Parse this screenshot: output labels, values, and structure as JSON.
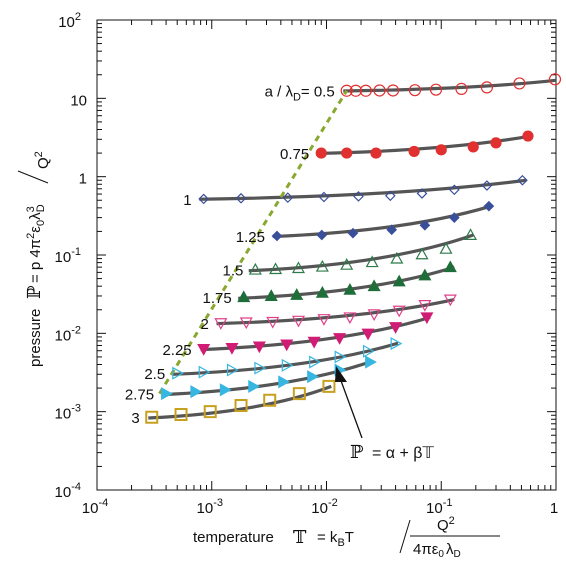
{
  "chart_data": {
    "type": "scatter",
    "xscale": "log",
    "yscale": "log",
    "xlim": [
      0.0001,
      1
    ],
    "ylim": [
      0.0001,
      100
    ],
    "x_ticks": [
      {
        "base": "10",
        "exp": "-4"
      },
      {
        "base": "10",
        "exp": "-3"
      },
      {
        "base": "10",
        "exp": "-2"
      },
      {
        "base": "10",
        "exp": "-1"
      },
      {
        "base": "1",
        "exp": ""
      }
    ],
    "y_ticks": [
      {
        "base": "10",
        "exp": "-4"
      },
      {
        "base": "10",
        "exp": "-3"
      },
      {
        "base": "10",
        "exp": "-2"
      },
      {
        "base": "10",
        "exp": "-1"
      },
      {
        "base": "1",
        "exp": ""
      },
      {
        "base": "10",
        "exp": ""
      },
      {
        "base": "10",
        "exp": "2"
      }
    ],
    "xlabel": {
      "word": "temperature",
      "symbol": "𝕋",
      "eq": "= k",
      "sub_b": "B",
      "t": "T",
      "num": "Q",
      "num_sup": "2",
      "den": "4πε",
      "den_sub0": "0",
      "den_lambda": "λ",
      "den_subD": "D"
    },
    "ylabel": {
      "word": "pressure",
      "symbol": "ℙ",
      "eq": "= p 4π",
      "sup2": "2",
      "eps": "ε",
      "sub0": "0",
      "lam": "λ",
      "sup3": "3",
      "subD": "D",
      "den": "Q",
      "den_sup": "2"
    },
    "series_prefix": {
      "a": "a / λ",
      "sub": "D",
      "eq": "= "
    },
    "fit_annotation": {
      "lhs": "ℙ",
      "rhs": "= α + β𝕋"
    },
    "series": [
      {
        "label": "0.5",
        "marker": "circle",
        "filled": false,
        "color": "#e03030",
        "x": [
          0.015,
          0.018,
          0.022,
          0.029,
          0.038,
          0.059,
          0.09,
          0.15,
          0.25,
          0.48,
          0.98
        ],
        "y": [
          12.5,
          12.5,
          12.5,
          12.6,
          12.6,
          12.7,
          12.9,
          13.2,
          13.8,
          15.5,
          17.5
        ]
      },
      {
        "label": "0.75",
        "marker": "circle",
        "filled": true,
        "color": "#e03030",
        "x": [
          0.009,
          0.015,
          0.027,
          0.058,
          0.1,
          0.19,
          0.3,
          0.57
        ],
        "y": [
          2.0,
          2.0,
          2.0,
          2.1,
          2.2,
          2.4,
          2.7,
          3.3
        ]
      },
      {
        "label": "1",
        "marker": "diamond",
        "filled": false,
        "color": "#3a4f9a",
        "x": [
          0.00085,
          0.0018,
          0.0046,
          0.0095,
          0.019,
          0.036,
          0.068,
          0.13,
          0.25,
          0.51
        ],
        "y": [
          0.52,
          0.53,
          0.54,
          0.55,
          0.56,
          0.57,
          0.61,
          0.68,
          0.77,
          0.9
        ]
      },
      {
        "label": "1.25",
        "marker": "diamond",
        "filled": true,
        "color": "#3a4f9a",
        "x": [
          0.0037,
          0.0091,
          0.017,
          0.037,
          0.072,
          0.13,
          0.26
        ],
        "y": [
          0.175,
          0.18,
          0.19,
          0.21,
          0.24,
          0.3,
          0.42
        ]
      },
      {
        "label": "1.5",
        "marker": "triangle-up",
        "filled": false,
        "color": "#2e7a4a",
        "x": [
          0.0024,
          0.0036,
          0.0057,
          0.0092,
          0.015,
          0.025,
          0.041,
          0.068,
          0.11,
          0.18
        ],
        "y": [
          0.065,
          0.066,
          0.068,
          0.071,
          0.075,
          0.081,
          0.09,
          0.102,
          0.12,
          0.18
        ]
      },
      {
        "label": "1.75",
        "marker": "triangle-up",
        "filled": true,
        "color": "#1f6e3a",
        "x": [
          0.0019,
          0.0033,
          0.0055,
          0.0092,
          0.016,
          0.026,
          0.043,
          0.072,
          0.12
        ],
        "y": [
          0.029,
          0.03,
          0.031,
          0.033,
          0.036,
          0.04,
          0.046,
          0.055,
          0.07
        ]
      },
      {
        "label": "2",
        "marker": "triangle-down",
        "filled": false,
        "color": "#e0408a",
        "x": [
          0.0012,
          0.002,
          0.0034,
          0.0057,
          0.0095,
          0.016,
          0.026,
          0.043,
          0.072,
          0.12
        ],
        "y": [
          0.0135,
          0.0138,
          0.014,
          0.0145,
          0.0152,
          0.016,
          0.0175,
          0.0195,
          0.023,
          0.027
        ]
      },
      {
        "label": "2.25",
        "marker": "triangle-down",
        "filled": true,
        "color": "#d01c74",
        "x": [
          0.00085,
          0.0015,
          0.0026,
          0.0045,
          0.0078,
          0.013,
          0.023,
          0.04,
          0.075
        ],
        "y": [
          0.0063,
          0.0065,
          0.0068,
          0.0072,
          0.0078,
          0.0087,
          0.0099,
          0.012,
          0.016
        ]
      },
      {
        "label": "2.5",
        "marker": "triangle-right",
        "filled": false,
        "color": "#36b6e0",
        "x": [
          0.0005,
          0.00085,
          0.0015,
          0.0026,
          0.0045,
          0.0078,
          0.013,
          0.023,
          0.04
        ],
        "y": [
          0.0031,
          0.0032,
          0.0034,
          0.0036,
          0.0039,
          0.0043,
          0.005,
          0.0059,
          0.0074
        ]
      },
      {
        "label": "2.75",
        "marker": "triangle-right",
        "filled": true,
        "color": "#36b6e0",
        "x": [
          0.0004,
          0.00072,
          0.0013,
          0.0023,
          0.0042,
          0.0075,
          0.013,
          0.024
        ],
        "y": [
          0.0017,
          0.0018,
          0.0019,
          0.0021,
          0.0024,
          0.0028,
          0.0034,
          0.0043
        ]
      },
      {
        "label": "3",
        "marker": "square",
        "filled": false,
        "color": "#c8a020",
        "x": [
          0.0003,
          0.00054,
          0.00097,
          0.0018,
          0.0032,
          0.0058,
          0.0105
        ],
        "y": [
          0.00085,
          0.00092,
          0.001,
          0.0012,
          0.0014,
          0.0017,
          0.0021
        ]
      }
    ],
    "fits": [
      {
        "x": [
          0.014,
          1.0
        ],
        "y": [
          12.4,
          17.0
        ]
      },
      {
        "x": [
          0.0085,
          0.6
        ],
        "y": [
          1.98,
          3.3
        ]
      },
      {
        "x": [
          0.00078,
          0.55
        ],
        "y": [
          0.515,
          0.9
        ]
      },
      {
        "x": [
          0.0034,
          0.27
        ],
        "y": [
          0.172,
          0.42
        ]
      },
      {
        "x": [
          0.0021,
          0.19
        ],
        "y": [
          0.063,
          0.18
        ]
      },
      {
        "x": [
          0.0017,
          0.13
        ],
        "y": [
          0.028,
          0.07
        ]
      },
      {
        "x": [
          0.0011,
          0.13
        ],
        "y": [
          0.0133,
          0.027
        ]
      },
      {
        "x": [
          0.0008,
          0.08
        ],
        "y": [
          0.0062,
          0.016
        ]
      },
      {
        "x": [
          0.00046,
          0.042
        ],
        "y": [
          0.003,
          0.0075
        ]
      },
      {
        "x": [
          0.00037,
          0.025
        ],
        "y": [
          0.00165,
          0.0044
        ]
      },
      {
        "x": [
          0.00028,
          0.011
        ],
        "y": [
          0.00083,
          0.0021
        ]
      }
    ],
    "boundary_line": {
      "x": [
        0.00035,
        0.015
      ],
      "y": [
        0.0017,
        12.5
      ],
      "color": "#8aa830"
    },
    "curve_bands": [
      1,
      1,
      0.87,
      1,
      0.92,
      0.93,
      1,
      1,
      0.95,
      1,
      0.92
    ]
  }
}
